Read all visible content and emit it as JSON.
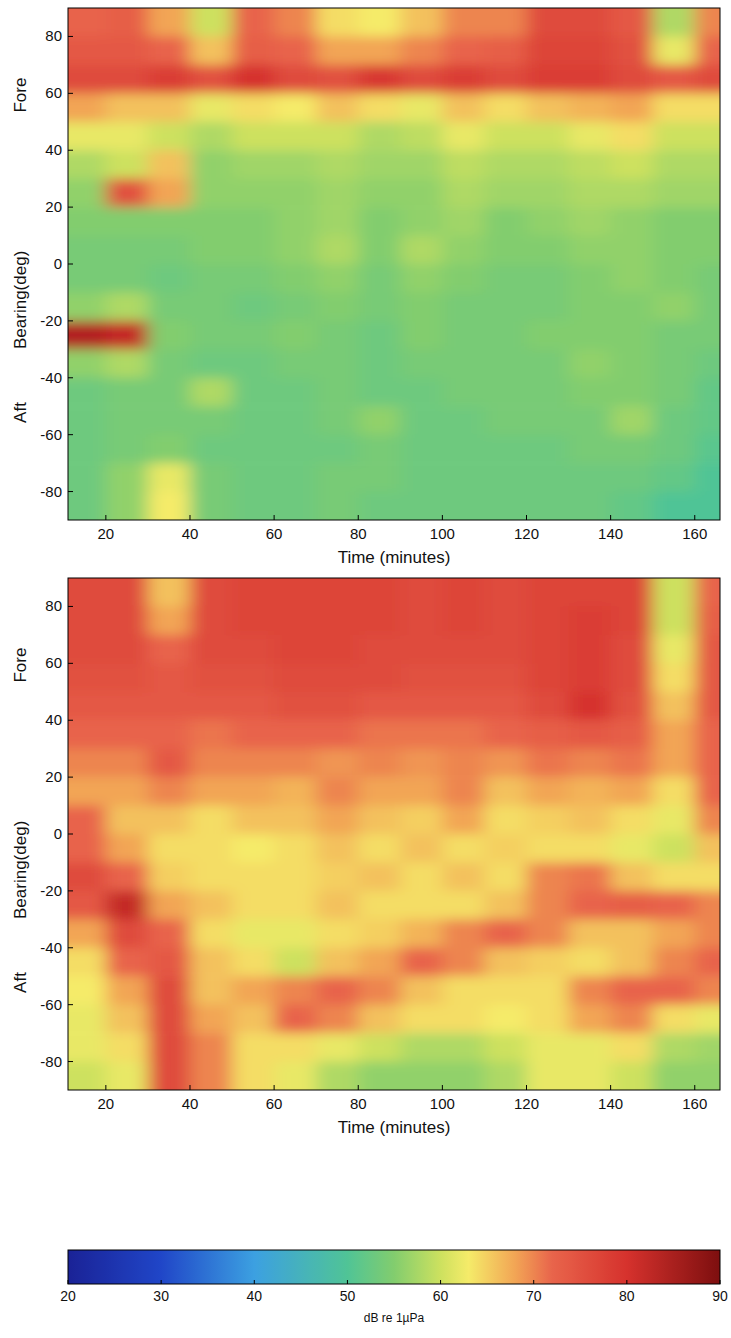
{
  "chart_data": [
    {
      "type": "heatmap",
      "xlabel": "Time (minutes)",
      "ylabel": "Bearing(deg)",
      "annotations": [
        "Fore",
        "Aft"
      ],
      "xlim": [
        11,
        166
      ],
      "ylim": [
        -90,
        90
      ],
      "xticks": [
        20,
        40,
        60,
        80,
        100,
        120,
        140,
        160
      ],
      "yticks": [
        -80,
        -60,
        -40,
        -20,
        0,
        20,
        40,
        60,
        80
      ],
      "x": [
        15,
        25,
        35,
        45,
        55,
        65,
        75,
        85,
        95,
        105,
        115,
        125,
        135,
        145,
        155,
        165
      ],
      "y": [
        85,
        75,
        65,
        55,
        45,
        35,
        25,
        15,
        5,
        -5,
        -15,
        -25,
        -35,
        -45,
        -55,
        -65,
        -75,
        -85
      ],
      "cells": [
        [
          72,
          73,
          68,
          60,
          72,
          70,
          64,
          63,
          66,
          70,
          70,
          76,
          76,
          74,
          58,
          70
        ],
        [
          74,
          74,
          72,
          66,
          73,
          72,
          68,
          68,
          70,
          72,
          73,
          77,
          77,
          75,
          62,
          72
        ],
        [
          76,
          76,
          78,
          75,
          80,
          76,
          75,
          79,
          76,
          78,
          76,
          78,
          78,
          76,
          74,
          76
        ],
        [
          68,
          66,
          66,
          62,
          64,
          63,
          66,
          64,
          62,
          66,
          64,
          66,
          67,
          68,
          64,
          64
        ],
        [
          62,
          62,
          60,
          58,
          60,
          60,
          60,
          58,
          59,
          62,
          60,
          60,
          62,
          64,
          60,
          60
        ],
        [
          58,
          60,
          66,
          56,
          57,
          57,
          58,
          57,
          57,
          59,
          58,
          58,
          59,
          60,
          58,
          58
        ],
        [
          56,
          75,
          68,
          56,
          56,
          56,
          57,
          56,
          56,
          58,
          57,
          57,
          58,
          58,
          57,
          57
        ],
        [
          55,
          55,
          55,
          55,
          55,
          56,
          57,
          55,
          56,
          57,
          55,
          56,
          57,
          56,
          55,
          55
        ],
        [
          54,
          54,
          54,
          55,
          55,
          56,
          58,
          55,
          58,
          56,
          55,
          55,
          56,
          56,
          55,
          55
        ],
        [
          54,
          54,
          53,
          54,
          54,
          55,
          56,
          54,
          56,
          55,
          54,
          54,
          55,
          56,
          55,
          54
        ],
        [
          56,
          58,
          54,
          54,
          53,
          54,
          55,
          54,
          55,
          54,
          54,
          54,
          55,
          55,
          56,
          54
        ],
        [
          84,
          82,
          55,
          54,
          54,
          55,
          54,
          53,
          55,
          54,
          54,
          55,
          55,
          55,
          54,
          54
        ],
        [
          56,
          58,
          54,
          53,
          53,
          54,
          54,
          53,
          54,
          54,
          54,
          54,
          56,
          55,
          54,
          53
        ],
        [
          53,
          54,
          54,
          58,
          53,
          53,
          54,
          53,
          53,
          54,
          54,
          54,
          55,
          55,
          54,
          52
        ],
        [
          53,
          54,
          54,
          54,
          53,
          53,
          54,
          56,
          53,
          53,
          54,
          54,
          54,
          57,
          53,
          52
        ],
        [
          53,
          54,
          55,
          53,
          53,
          53,
          53,
          54,
          53,
          53,
          53,
          53,
          54,
          54,
          53,
          51
        ],
        [
          53,
          56,
          62,
          54,
          53,
          53,
          54,
          54,
          53,
          53,
          53,
          53,
          53,
          53,
          52,
          50
        ],
        [
          53,
          56,
          63,
          54,
          53,
          53,
          54,
          53,
          53,
          53,
          53,
          53,
          53,
          52,
          50,
          50
        ]
      ]
    },
    {
      "type": "heatmap",
      "xlabel": "Time (minutes)",
      "ylabel": "Bearing(deg)",
      "annotations": [
        "Fore",
        "Aft"
      ],
      "xlim": [
        11,
        166
      ],
      "ylim": [
        -90,
        90
      ],
      "xticks": [
        20,
        40,
        60,
        80,
        100,
        120,
        140,
        160
      ],
      "yticks": [
        -80,
        -60,
        -40,
        -20,
        0,
        20,
        40,
        60,
        80
      ],
      "x": [
        15,
        25,
        35,
        45,
        55,
        65,
        75,
        85,
        95,
        105,
        115,
        125,
        135,
        145,
        155,
        165
      ],
      "y": [
        85,
        75,
        65,
        55,
        45,
        35,
        25,
        15,
        5,
        -5,
        -15,
        -25,
        -35,
        -45,
        -55,
        -65,
        -75,
        -85
      ],
      "cells": [
        [
          76,
          76,
          66,
          76,
          77,
          77,
          77,
          77,
          76,
          77,
          76,
          77,
          77,
          77,
          60,
          72
        ],
        [
          76,
          76,
          68,
          76,
          77,
          77,
          77,
          77,
          76,
          77,
          76,
          77,
          78,
          77,
          60,
          73
        ],
        [
          76,
          76,
          72,
          76,
          76,
          77,
          77,
          76,
          76,
          76,
          76,
          77,
          78,
          76,
          62,
          74
        ],
        [
          75,
          75,
          74,
          75,
          75,
          76,
          76,
          76,
          75,
          75,
          75,
          77,
          78,
          76,
          64,
          74
        ],
        [
          74,
          74,
          74,
          74,
          74,
          75,
          75,
          74,
          74,
          74,
          74,
          76,
          80,
          75,
          66,
          74
        ],
        [
          72,
          72,
          72,
          71,
          72,
          72,
          72,
          71,
          71,
          71,
          72,
          73,
          74,
          73,
          68,
          72
        ],
        [
          70,
          70,
          74,
          70,
          70,
          70,
          69,
          70,
          69,
          70,
          69,
          71,
          70,
          71,
          68,
          72
        ],
        [
          68,
          68,
          70,
          68,
          68,
          67,
          70,
          68,
          68,
          70,
          66,
          68,
          67,
          68,
          64,
          72
        ],
        [
          72,
          66,
          66,
          64,
          66,
          66,
          68,
          66,
          65,
          68,
          64,
          65,
          66,
          64,
          62,
          70
        ],
        [
          72,
          68,
          64,
          64,
          63,
          64,
          66,
          64,
          66,
          64,
          65,
          64,
          64,
          62,
          60,
          66
        ],
        [
          76,
          72,
          65,
          64,
          64,
          64,
          65,
          66,
          64,
          66,
          64,
          70,
          71,
          66,
          64,
          64
        ],
        [
          74,
          82,
          68,
          66,
          64,
          64,
          66,
          64,
          64,
          64,
          66,
          70,
          72,
          73,
          72,
          70
        ],
        [
          68,
          76,
          72,
          64,
          62,
          62,
          64,
          65,
          67,
          70,
          72,
          70,
          66,
          66,
          68,
          70
        ],
        [
          64,
          72,
          74,
          66,
          64,
          60,
          66,
          68,
          72,
          70,
          66,
          65,
          64,
          66,
          70,
          72
        ],
        [
          63,
          68,
          76,
          66,
          68,
          70,
          72,
          70,
          66,
          64,
          64,
          64,
          70,
          72,
          72,
          70
        ],
        [
          62,
          66,
          76,
          68,
          66,
          72,
          70,
          66,
          64,
          64,
          63,
          64,
          68,
          70,
          64,
          62
        ],
        [
          62,
          64,
          76,
          70,
          64,
          64,
          62,
          60,
          58,
          58,
          60,
          62,
          62,
          64,
          58,
          57
        ],
        [
          60,
          62,
          76,
          70,
          64,
          62,
          58,
          56,
          56,
          56,
          58,
          62,
          62,
          60,
          56,
          56
        ]
      ]
    }
  ],
  "colorbar": {
    "range": [
      20,
      90
    ],
    "ticks": [
      20,
      30,
      40,
      50,
      60,
      70,
      80,
      90
    ],
    "label": "dB re 1µPa"
  }
}
